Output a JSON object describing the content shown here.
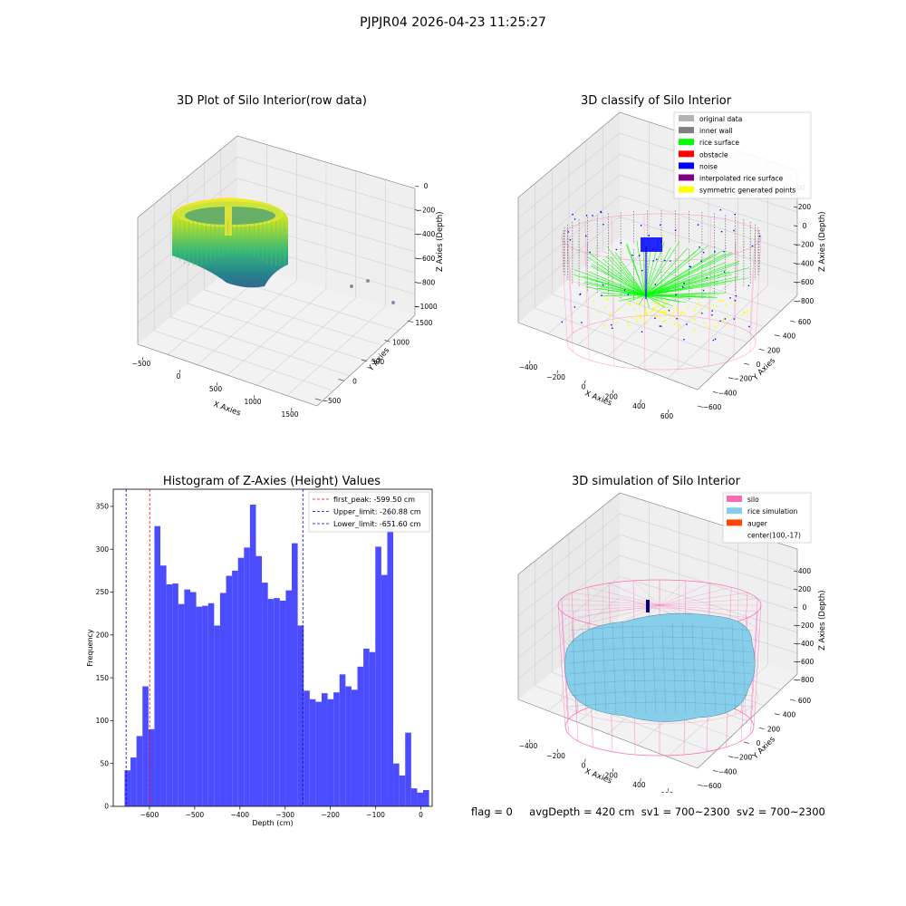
{
  "figure_title": "PJPJR04 2026-04-23 11:25:27",
  "status": {
    "flag": "flag = 0",
    "avg_depth": "avgDepth = 420 cm",
    "sv1": "sv1 = 700~2300",
    "sv2": "sv2 = 700~2300"
  },
  "colors": {
    "histogram_bar": "#4c4cff",
    "first_peak_line": "#ff0000",
    "limit_line": "#0000cc",
    "silo": "#ff69b4",
    "rice_simulation": "#87ceeb",
    "auger": "#ff4500",
    "original_data": "#b3b3b3",
    "inner_wall": "#808080",
    "rice_surface": "#00ff00",
    "obstacle": "#ff0000",
    "noise": "#0000ff",
    "interpolated_rice_surface": "#800080",
    "symmetric_generated_points": "#ffff00"
  },
  "chart_data": [
    {
      "type": "scatter",
      "title": "3D Plot of Silo Interior(row data)",
      "xlabel": "X Axies",
      "ylabel": "Y Axies",
      "zlabel": "Z Axies (Depth)",
      "x_ticks": [
        "−500",
        "0",
        "500",
        "1000",
        "1500"
      ],
      "y_ticks": [
        "−500",
        "0",
        "500",
        "1000",
        "1500"
      ],
      "z_ticks": [
        "0",
        "−200",
        "−400",
        "−600",
        "−800",
        "−1000"
      ],
      "colormap": "viridis"
    },
    {
      "type": "scatter",
      "title": "3D classify of Silo Interior",
      "xlabel": "X Axies",
      "ylabel": "Y Axies",
      "zlabel": "Z Axies (Depth)",
      "x_ticks": [
        "−400",
        "−200",
        "0",
        "200",
        "400",
        "600"
      ],
      "y_ticks": [
        "−600",
        "−400",
        "−200",
        "0",
        "200",
        "400",
        "600"
      ],
      "z_ticks": [
        "200",
        "0",
        "−200",
        "−400",
        "−600",
        "−800"
      ],
      "z_ticks_partial": [
        "00"
      ],
      "legend": [
        "original data",
        "inner wall",
        "rice surface",
        "obstacle",
        "noise",
        "interpolated rice surface",
        "symmetric generated points"
      ],
      "legend_position": "top-right"
    },
    {
      "type": "bar",
      "title": "Histogram of Z-Axies (Height) Values",
      "xlabel": "Depth (cm)",
      "ylabel": "Frequency",
      "xlim": [
        -680,
        25
      ],
      "ylim": [
        0,
        370
      ],
      "x_ticks": [
        -600,
        -500,
        -400,
        -300,
        -200,
        -100,
        0
      ],
      "x_tick_labels": [
        "−600",
        "−500",
        "−400",
        "−300",
        "−200",
        "−100",
        "0"
      ],
      "y_ticks": [
        0,
        50,
        100,
        150,
        200,
        250,
        300,
        350
      ],
      "bin_start": -655,
      "bin_width": 13.2,
      "values": [
        42,
        57,
        82,
        140,
        90,
        327,
        281,
        259,
        260,
        236,
        253,
        250,
        233,
        234,
        237,
        211,
        249,
        269,
        275,
        290,
        302,
        352,
        292,
        261,
        242,
        243,
        240,
        252,
        307,
        211,
        135,
        125,
        122,
        132,
        125,
        133,
        154,
        140,
        136,
        163,
        184,
        180,
        303,
        270,
        344,
        50,
        36,
        86,
        21,
        16,
        19
      ],
      "lines": [
        {
          "label": "first_peak: -599.50 cm",
          "x": -599.5,
          "color": "#ff0000"
        },
        {
          "label": "Upper_limit: -260.88 cm",
          "x": -260.88,
          "color": "#0000cc"
        },
        {
          "label": "Lower_limit: -651.60 cm",
          "x": -651.6,
          "color": "#0000cc"
        }
      ],
      "legend_position": "top-right"
    },
    {
      "type": "surface",
      "title": "3D simulation of Silo Interior",
      "xlabel": "X Axies",
      "ylabel": "Y Axies",
      "zlabel": "Z Axies (Depth)",
      "x_ticks": [
        "−400",
        "−200",
        "0",
        "200",
        "400",
        "600"
      ],
      "y_ticks": [
        "−600",
        "−400",
        "−200",
        "0",
        "200",
        "400",
        "600"
      ],
      "z_ticks": [
        "400",
        "200",
        "0",
        "−200",
        "−400",
        "−600",
        "−800"
      ],
      "legend": [
        "silo",
        "rice simulation",
        "auger",
        "center(100,-17)"
      ],
      "legend_position": "top-right"
    }
  ]
}
